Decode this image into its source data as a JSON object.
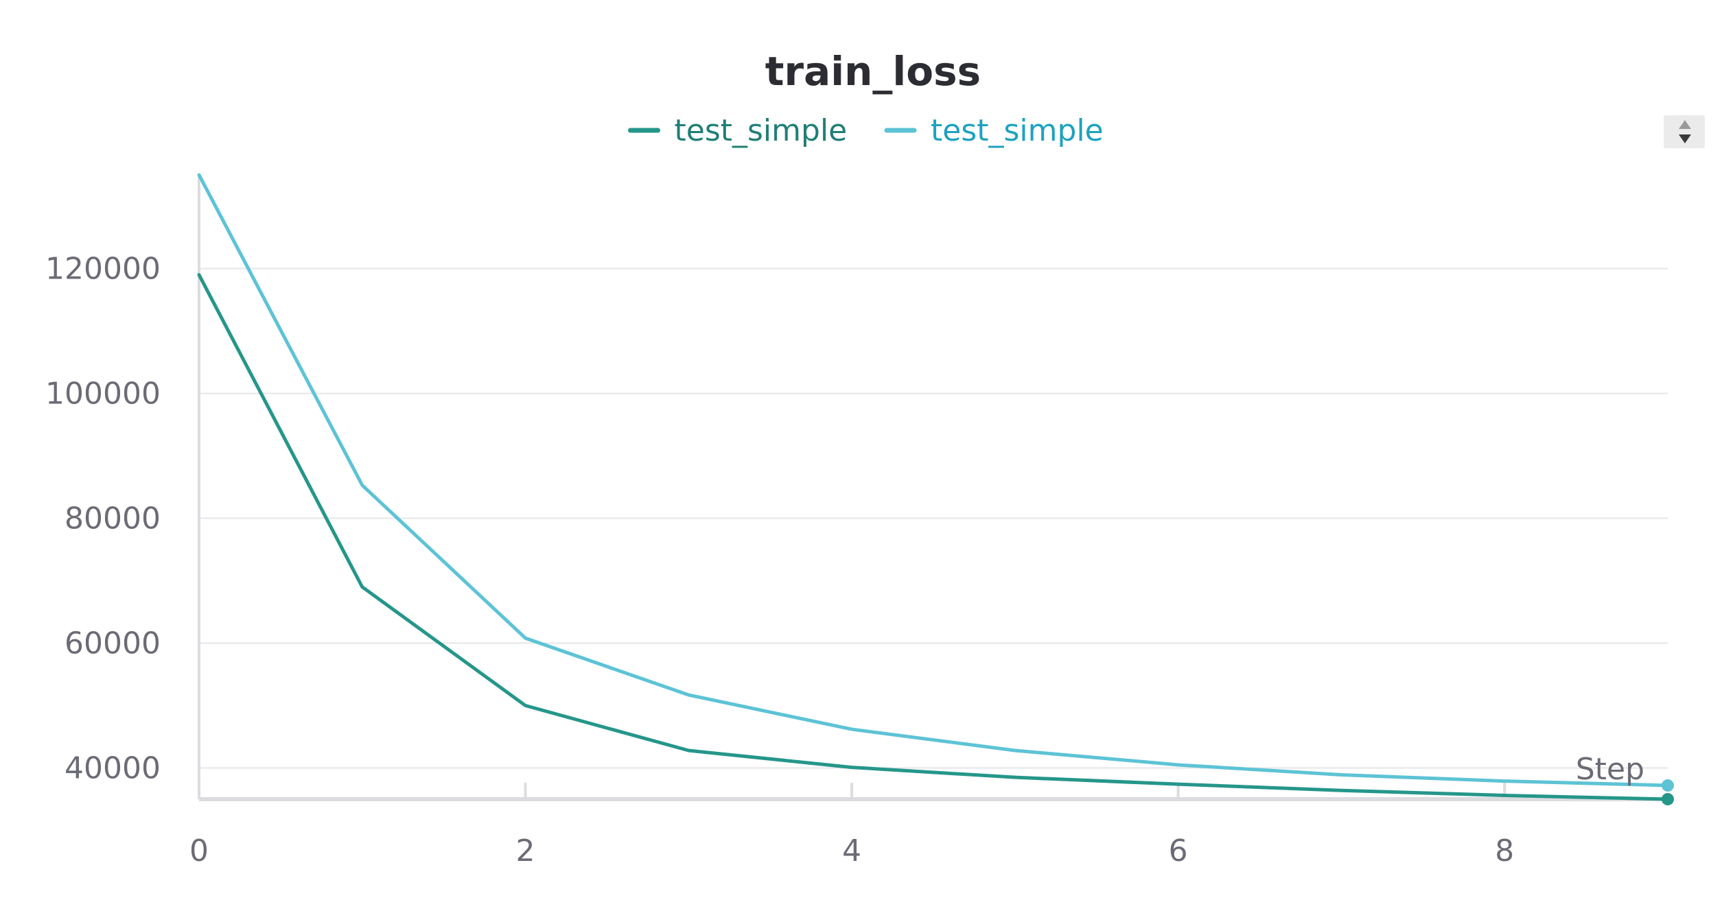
{
  "chart_data": {
    "type": "line",
    "title": "train_loss",
    "xlabel": "Step",
    "ylabel": "",
    "x": [
      0,
      1,
      2,
      3,
      4,
      5,
      6,
      7,
      8,
      9
    ],
    "xlim": [
      0,
      9
    ],
    "ylim": [
      35000,
      135000
    ],
    "x_ticks": [
      0,
      2,
      4,
      6,
      8
    ],
    "x_tick_labels": [
      "0",
      "2",
      "4",
      "6",
      "8"
    ],
    "y_ticks": [
      40000,
      60000,
      80000,
      100000,
      120000
    ],
    "y_tick_labels": [
      "40000",
      "60000",
      "80000",
      "100000",
      "120000"
    ],
    "grid": true,
    "legend_position": "top-center",
    "series": [
      {
        "name": "test_simple",
        "color": "#25968a",
        "label_color": "#1f7f75",
        "values": [
          119000,
          69000,
          50000,
          42800,
          40100,
          38500,
          37400,
          36400,
          35600,
          35000
        ]
      },
      {
        "name": "test_simple",
        "color": "#5dc3d6",
        "label_color": "#1ea2bf",
        "values": [
          135000,
          85300,
          60800,
          51700,
          46200,
          42800,
          40500,
          38900,
          37900,
          37200
        ]
      }
    ]
  },
  "controls": {
    "scroll_icon": "updown-arrows-icon"
  }
}
